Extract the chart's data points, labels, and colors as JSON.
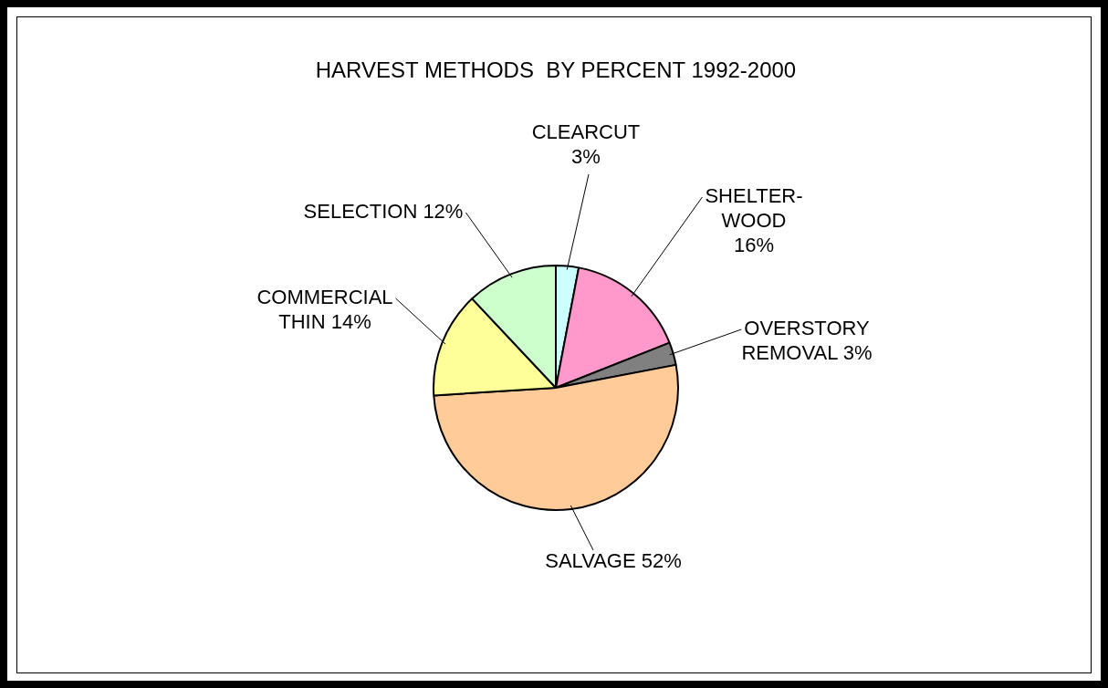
{
  "chart_data": {
    "type": "pie",
    "title": "HARVEST METHODS  BY PERCENT 1992-2000",
    "categories": [
      "CLEARCUT",
      "SHELTER-WOOD",
      "OVERSTORY REMOVAL",
      "SALVAGE",
      "COMMERCIAL THIN",
      "SELECTION"
    ],
    "values": [
      3,
      16,
      3,
      52,
      14,
      12
    ],
    "value_labels": [
      "3%",
      "16%",
      "3%",
      "52%",
      "14%",
      "12%"
    ],
    "colors": [
      "#ccffff",
      "#ff99cc",
      "#808080",
      "#ffcc99",
      "#ffff99",
      "#ccffcc"
    ],
    "legend": false
  }
}
